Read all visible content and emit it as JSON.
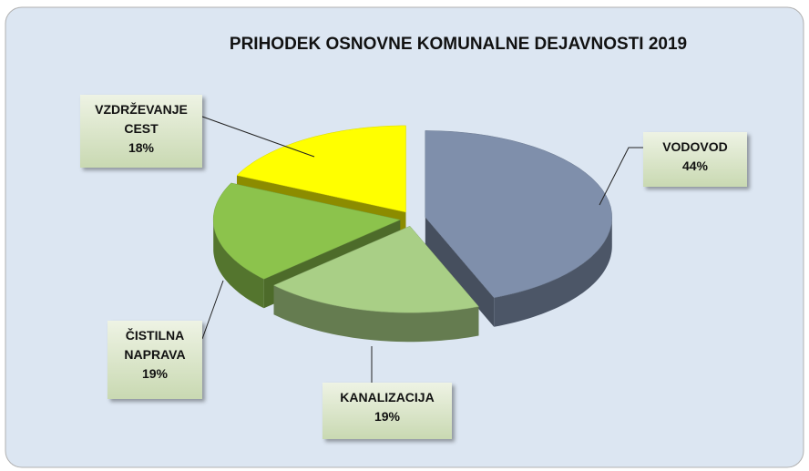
{
  "chart_data": {
    "type": "pie",
    "title": "PRIHODEK OSNOVNE KOMUNALNE DEJAVNOSTI 2019",
    "categories": [
      "VODOVOD",
      "KANALIZACIJA",
      "ČISTILNA NAPRAVA",
      "VZDRŽEVANJE CEST"
    ],
    "values": [
      44,
      19,
      19,
      18
    ],
    "value_labels": [
      "44%",
      "19%",
      "19%",
      "18%"
    ],
    "colors": [
      "#7f8fab",
      "#a9cf86",
      "#8cc34c",
      "#ffff00"
    ]
  }
}
